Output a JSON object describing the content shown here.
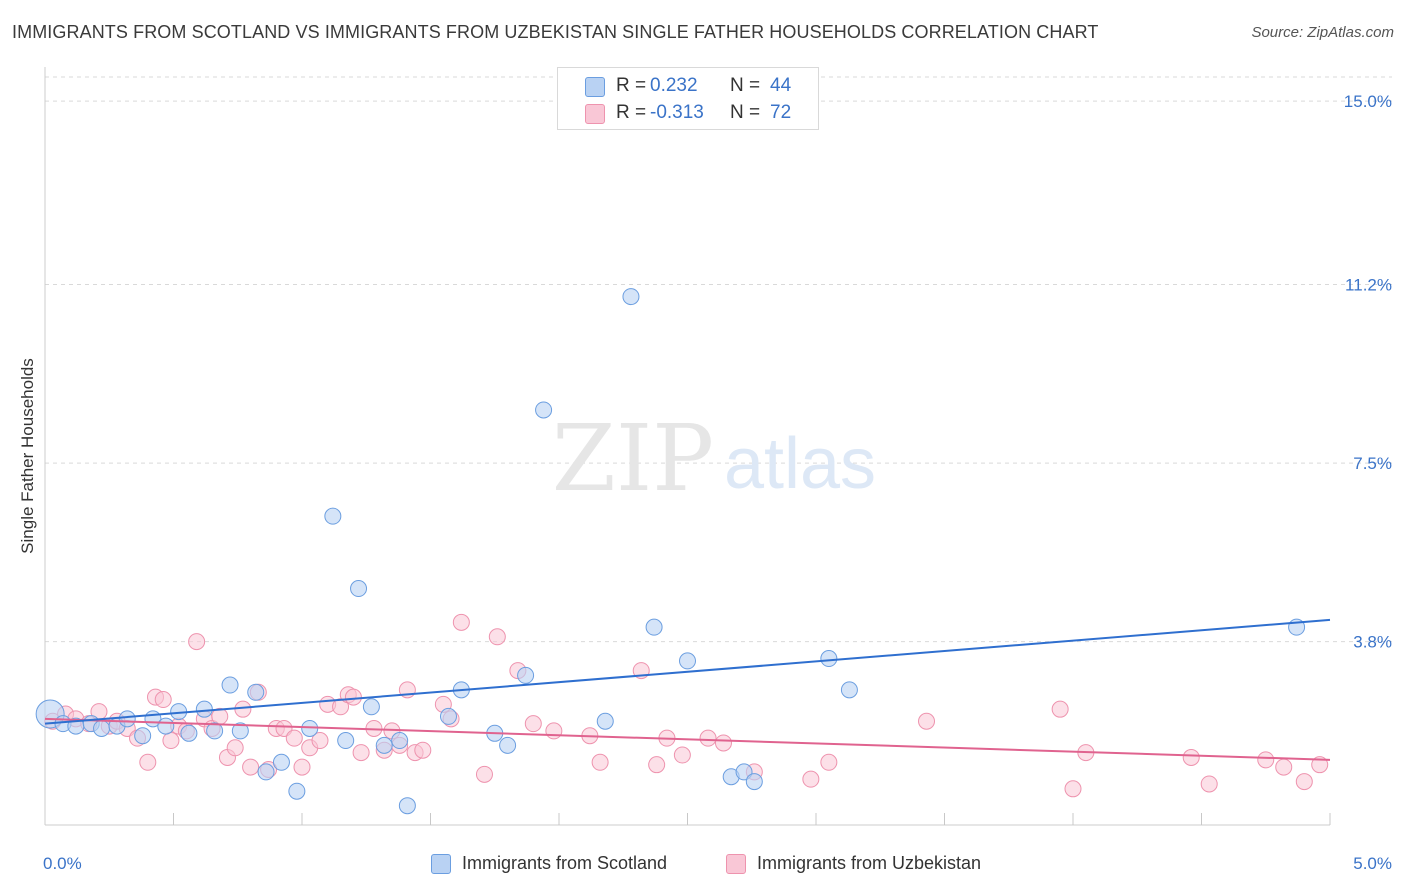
{
  "title": "IMMIGRANTS FROM SCOTLAND VS IMMIGRANTS FROM UZBEKISTAN SINGLE FATHER HOUSEHOLDS CORRELATION CHART",
  "source": "Source: ZipAtlas.com",
  "watermark": {
    "zip": "ZIP",
    "atlas": "atlas"
  },
  "legend_top": {
    "rows": [
      {
        "r_label": "R =",
        "r_value": "0.232",
        "n_label": "N =",
        "n_value": "44"
      },
      {
        "r_label": "R =",
        "r_value": "-0.313",
        "n_label": "N =",
        "n_value": "72"
      }
    ]
  },
  "legend_bottom": {
    "scotland": "Immigrants from Scotland",
    "uzbekistan": "Immigrants from Uzbekistan"
  },
  "colors": {
    "scotland_fill": "#b9d2f3",
    "scotland_stroke": "#6b9ee0",
    "scotland_line": "#2f6fcf",
    "uzbekistan_fill": "#f9c7d6",
    "uzbekistan_stroke": "#ee93ae",
    "uzbekistan_line": "#e0638f",
    "tick_label": "#3a73c8",
    "grid": "#d9d9d9"
  },
  "chart_data": {
    "type": "scatter",
    "title": "IMMIGRANTS FROM SCOTLAND VS IMMIGRANTS FROM UZBEKISTAN SINGLE FATHER HOUSEHOLDS CORRELATION CHART",
    "xlabel": "",
    "ylabel": "Single Father Households",
    "xlim": [
      0,
      5
    ],
    "ylim": [
      0,
      15.5
    ],
    "x_tick_labels": [
      {
        "value": 0,
        "label": "0.0%"
      },
      {
        "value": 5,
        "label": "5.0%"
      }
    ],
    "y_ticks": [
      {
        "value": 3.8,
        "label": "3.8%"
      },
      {
        "value": 7.5,
        "label": "7.5%"
      },
      {
        "value": 11.2,
        "label": "11.2%"
      },
      {
        "value": 15.0,
        "label": "15.0%"
      }
    ],
    "x_minor_ticks": [
      0.5,
      1.0,
      1.5,
      2.0,
      2.5,
      3.0,
      3.5,
      4.0,
      4.5,
      5.0
    ],
    "grid": true,
    "legend_placement": "bottom",
    "series": [
      {
        "name": "Immigrants from Scotland",
        "r": 0.232,
        "n": 44,
        "trend": {
          "x": [
            0,
            5
          ],
          "y": [
            2.1,
            4.25
          ]
        },
        "points": [
          [
            0.02,
            2.3
          ],
          [
            0.07,
            2.1
          ],
          [
            0.12,
            2.05
          ],
          [
            0.18,
            2.1
          ],
          [
            0.22,
            2.0
          ],
          [
            0.28,
            2.05
          ],
          [
            0.32,
            2.2
          ],
          [
            0.38,
            1.85
          ],
          [
            0.42,
            2.2
          ],
          [
            0.47,
            2.05
          ],
          [
            0.52,
            2.35
          ],
          [
            0.56,
            1.9
          ],
          [
            0.62,
            2.4
          ],
          [
            0.66,
            1.95
          ],
          [
            0.72,
            2.9
          ],
          [
            0.76,
            1.95
          ],
          [
            0.82,
            2.75
          ],
          [
            0.86,
            1.1
          ],
          [
            0.92,
            1.3
          ],
          [
            0.98,
            0.7
          ],
          [
            1.03,
            2.0
          ],
          [
            1.12,
            6.4
          ],
          [
            1.17,
            1.75
          ],
          [
            1.22,
            4.9
          ],
          [
            1.27,
            2.45
          ],
          [
            1.32,
            1.65
          ],
          [
            1.38,
            1.75
          ],
          [
            1.41,
            0.4
          ],
          [
            1.57,
            2.25
          ],
          [
            1.62,
            2.8
          ],
          [
            1.75,
            1.9
          ],
          [
            1.8,
            1.65
          ],
          [
            1.87,
            3.1
          ],
          [
            1.94,
            8.6
          ],
          [
            2.18,
            2.15
          ],
          [
            2.28,
            10.95
          ],
          [
            2.37,
            4.1
          ],
          [
            2.5,
            3.4
          ],
          [
            2.67,
            1.0
          ],
          [
            2.72,
            1.1
          ],
          [
            2.76,
            0.9
          ],
          [
            3.05,
            3.45
          ],
          [
            3.13,
            2.8
          ],
          [
            4.87,
            4.1
          ]
        ]
      },
      {
        "name": "Immigrants from Uzbekistan",
        "r": -0.313,
        "n": 72,
        "trend": {
          "x": [
            0,
            5
          ],
          "y": [
            2.2,
            1.35
          ]
        },
        "points": [
          [
            0.03,
            2.15
          ],
          [
            0.08,
            2.3
          ],
          [
            0.12,
            2.2
          ],
          [
            0.17,
            2.1
          ],
          [
            0.21,
            2.35
          ],
          [
            0.25,
            2.05
          ],
          [
            0.28,
            2.15
          ],
          [
            0.32,
            2.0
          ],
          [
            0.36,
            1.8
          ],
          [
            0.4,
            1.3
          ],
          [
            0.43,
            2.65
          ],
          [
            0.46,
            2.6
          ],
          [
            0.49,
            1.75
          ],
          [
            0.52,
            2.05
          ],
          [
            0.55,
            1.95
          ],
          [
            0.59,
            3.8
          ],
          [
            0.62,
            2.2
          ],
          [
            0.65,
            2.0
          ],
          [
            0.68,
            2.25
          ],
          [
            0.71,
            1.4
          ],
          [
            0.74,
            1.6
          ],
          [
            0.77,
            2.4
          ],
          [
            0.8,
            1.2
          ],
          [
            0.83,
            2.75
          ],
          [
            0.87,
            1.15
          ],
          [
            0.9,
            2.0
          ],
          [
            0.93,
            2.0
          ],
          [
            0.97,
            1.8
          ],
          [
            1.0,
            1.2
          ],
          [
            1.03,
            1.6
          ],
          [
            1.07,
            1.75
          ],
          [
            1.1,
            2.5
          ],
          [
            1.15,
            2.45
          ],
          [
            1.18,
            2.7
          ],
          [
            1.2,
            2.65
          ],
          [
            1.23,
            1.5
          ],
          [
            1.28,
            2.0
          ],
          [
            1.32,
            1.55
          ],
          [
            1.35,
            1.95
          ],
          [
            1.38,
            1.65
          ],
          [
            1.41,
            2.8
          ],
          [
            1.44,
            1.5
          ],
          [
            1.47,
            1.55
          ],
          [
            1.55,
            2.5
          ],
          [
            1.58,
            2.2
          ],
          [
            1.62,
            4.2
          ],
          [
            1.71,
            1.05
          ],
          [
            1.76,
            3.9
          ],
          [
            1.84,
            3.2
          ],
          [
            1.9,
            2.1
          ],
          [
            1.98,
            1.95
          ],
          [
            2.12,
            1.85
          ],
          [
            2.16,
            1.3
          ],
          [
            2.32,
            3.2
          ],
          [
            2.38,
            1.25
          ],
          [
            2.42,
            1.8
          ],
          [
            2.48,
            1.45
          ],
          [
            2.58,
            1.8
          ],
          [
            2.64,
            1.7
          ],
          [
            2.76,
            1.1
          ],
          [
            2.98,
            0.95
          ],
          [
            3.05,
            1.3
          ],
          [
            3.43,
            2.15
          ],
          [
            3.95,
            2.4
          ],
          [
            4.0,
            0.75
          ],
          [
            4.05,
            1.5
          ],
          [
            4.46,
            1.4
          ],
          [
            4.53,
            0.85
          ],
          [
            4.75,
            1.35
          ],
          [
            4.82,
            1.2
          ],
          [
            4.9,
            0.9
          ],
          [
            4.96,
            1.25
          ]
        ]
      }
    ]
  }
}
